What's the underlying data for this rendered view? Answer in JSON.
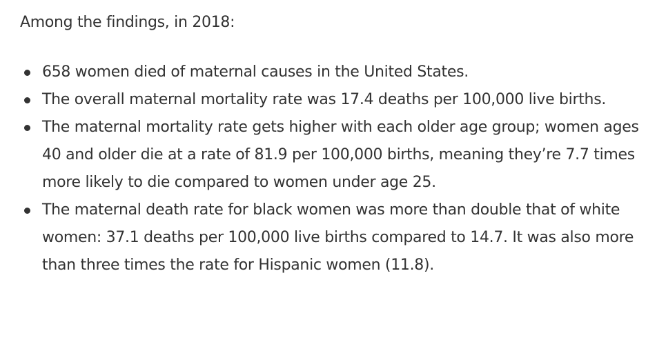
{
  "intro": "Among the findings, in 2018:",
  "findings": [
    "658 women died of maternal causes in the United States.",
    "The overall maternal mortality rate was 17.4 deaths per 100,000 live births.",
    "The maternal mortality rate gets higher with each older age group; women ages 40 and older die at a rate of 81.9 per 100,000 births, meaning they’re 7.7 times more likely to die compared to women under age 25.",
    "The maternal death rate for black women was more than double that of white women: 37.1 deaths per 100,000 live births compared to 14.7. It was also more than three times the rate for Hispanic women (11.8)."
  ]
}
